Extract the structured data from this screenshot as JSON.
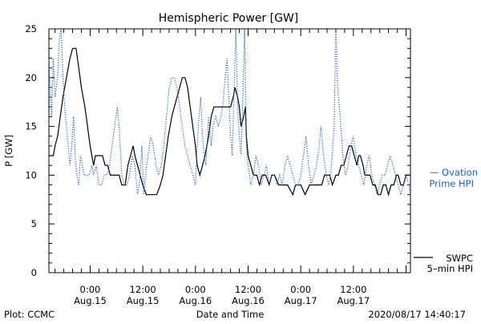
{
  "chart_data": {
    "type": "line",
    "title": "Hemispheric Power [GW]",
    "xlabel": "Date and Time",
    "ylabel": "P [GW]",
    "ylim": [
      0,
      25
    ],
    "xlim": [
      -4.7,
      36.5
    ],
    "y_ticks": [
      0,
      5,
      10,
      15,
      20,
      25
    ],
    "x_ticks": [
      {
        "x": 0,
        "line1": "0:00",
        "line2": "Aug.15"
      },
      {
        "x": 6,
        "line1": "12:00",
        "line2": "Aug.15"
      },
      {
        "x": 12,
        "line1": "0:00",
        "line2": "Aug.16"
      },
      {
        "x": 18,
        "line1": "12:00",
        "line2": "Aug.16"
      },
      {
        "x": 24,
        "line1": "0:00",
        "line2": "Aug.17"
      },
      {
        "x": 30,
        "line1": "12:00",
        "line2": "Aug.17"
      }
    ],
    "x_unit": "hours from Aug.15 0:00 (tick labels every 6 h)",
    "grid": false,
    "series": [
      {
        "name": "SWPC 5-min HPI",
        "style": "solid",
        "color": "#000000",
        "points": [
          [
            -4.7,
            12
          ],
          [
            -4.2,
            12
          ],
          [
            -4.0,
            13
          ],
          [
            -3.7,
            14
          ],
          [
            -3.4,
            16
          ],
          [
            -3.1,
            18
          ],
          [
            -2.7,
            20
          ],
          [
            -2.3,
            22
          ],
          [
            -2.0,
            23
          ],
          [
            -1.6,
            23
          ],
          [
            -1.3,
            21
          ],
          [
            -1.0,
            19
          ],
          [
            -0.6,
            17
          ],
          [
            -0.3,
            15
          ],
          [
            0.0,
            13
          ],
          [
            0.2,
            12
          ],
          [
            0.4,
            11
          ],
          [
            0.6,
            12
          ],
          [
            0.9,
            12
          ],
          [
            1.4,
            12
          ],
          [
            1.7,
            11
          ],
          [
            2.0,
            11
          ],
          [
            2.3,
            10
          ],
          [
            2.7,
            10
          ],
          [
            3.0,
            10
          ],
          [
            3.3,
            10
          ],
          [
            3.6,
            9
          ],
          [
            4.0,
            9
          ],
          [
            4.3,
            11
          ],
          [
            4.6,
            12
          ],
          [
            4.9,
            13
          ],
          [
            5.1,
            12
          ],
          [
            5.4,
            11
          ],
          [
            5.7,
            10
          ],
          [
            6.0,
            9
          ],
          [
            6.4,
            8
          ],
          [
            7.0,
            8
          ],
          [
            7.6,
            8
          ],
          [
            8.0,
            9
          ],
          [
            8.3,
            10
          ],
          [
            8.6,
            12
          ],
          [
            8.9,
            14
          ],
          [
            9.3,
            16
          ],
          [
            9.6,
            17
          ],
          [
            9.9,
            18
          ],
          [
            10.2,
            19
          ],
          [
            10.5,
            20
          ],
          [
            10.8,
            20
          ],
          [
            11.1,
            19
          ],
          [
            11.4,
            17
          ],
          [
            11.7,
            15
          ],
          [
            12.0,
            13
          ],
          [
            12.2,
            11
          ],
          [
            12.5,
            10
          ],
          [
            12.8,
            11
          ],
          [
            13.1,
            12
          ],
          [
            13.5,
            14
          ],
          [
            13.8,
            16
          ],
          [
            14.1,
            17
          ],
          [
            14.6,
            17
          ],
          [
            15.3,
            17
          ],
          [
            16.0,
            17
          ],
          [
            16.3,
            18
          ],
          [
            16.5,
            19
          ],
          [
            16.8,
            18
          ],
          [
            17.0,
            17
          ],
          [
            17.2,
            15
          ],
          [
            17.5,
            16
          ],
          [
            17.7,
            17
          ],
          [
            17.8,
            14
          ],
          [
            18.0,
            12
          ],
          [
            18.3,
            11
          ],
          [
            18.6,
            10
          ],
          [
            19.0,
            10
          ],
          [
            19.3,
            9
          ],
          [
            19.6,
            10
          ],
          [
            20.0,
            10
          ],
          [
            20.4,
            9
          ],
          [
            20.7,
            10
          ],
          [
            21.0,
            10
          ],
          [
            21.5,
            9
          ],
          [
            22.0,
            9
          ],
          [
            22.5,
            9
          ],
          [
            23.1,
            8
          ],
          [
            23.4,
            9
          ],
          [
            24.0,
            9
          ],
          [
            24.5,
            8
          ],
          [
            25.0,
            9
          ],
          [
            25.5,
            9
          ],
          [
            26.0,
            9
          ],
          [
            26.4,
            9
          ],
          [
            26.7,
            10
          ],
          [
            27.0,
            10
          ],
          [
            27.3,
            10
          ],
          [
            27.6,
            9
          ],
          [
            28.0,
            10
          ],
          [
            28.3,
            10
          ],
          [
            28.6,
            11
          ],
          [
            28.9,
            11
          ],
          [
            29.2,
            12
          ],
          [
            29.5,
            13
          ],
          [
            29.8,
            13
          ],
          [
            30.1,
            12
          ],
          [
            30.4,
            11
          ],
          [
            30.6,
            12
          ],
          [
            30.8,
            12
          ],
          [
            31.1,
            11
          ],
          [
            31.3,
            10
          ],
          [
            31.6,
            10
          ],
          [
            31.9,
            10
          ],
          [
            32.2,
            9
          ],
          [
            32.5,
            9
          ],
          [
            32.8,
            8
          ],
          [
            33.1,
            8
          ],
          [
            33.4,
            9
          ],
          [
            33.7,
            9
          ],
          [
            34.0,
            8
          ],
          [
            34.3,
            9
          ],
          [
            34.6,
            9
          ],
          [
            34.9,
            10
          ],
          [
            35.1,
            10
          ],
          [
            35.4,
            9
          ],
          [
            35.7,
            9
          ],
          [
            36.0,
            10
          ],
          [
            36.3,
            10
          ],
          [
            36.5,
            10
          ]
        ]
      },
      {
        "name": "Ovation Prime HPI",
        "style": "dotted",
        "color": "#1e5fc0",
        "points": [
          [
            -4.7,
            22
          ],
          [
            -4.4,
            16
          ],
          [
            -4.2,
            22
          ],
          [
            -4.0,
            18
          ],
          [
            -3.7,
            20
          ],
          [
            -3.5,
            24
          ],
          [
            -3.3,
            25
          ],
          [
            -3.1,
            20
          ],
          [
            -2.9,
            17
          ],
          [
            -2.7,
            15
          ],
          [
            -2.5,
            13
          ],
          [
            -2.3,
            11
          ],
          [
            -2.1,
            13
          ],
          [
            -1.9,
            16
          ],
          [
            -1.7,
            12
          ],
          [
            -1.5,
            10
          ],
          [
            -1.3,
            9
          ],
          [
            -1.1,
            12
          ],
          [
            -0.9,
            11
          ],
          [
            -0.7,
            10
          ],
          [
            -0.5,
            10
          ],
          [
            -0.3,
            10
          ],
          [
            -0.1,
            10
          ],
          [
            0.2,
            11
          ],
          [
            0.4,
            10
          ],
          [
            0.7,
            11
          ],
          [
            1.0,
            9
          ],
          [
            1.3,
            9
          ],
          [
            1.6,
            10
          ],
          [
            1.9,
            10
          ],
          [
            2.2,
            11
          ],
          [
            2.5,
            13
          ],
          [
            2.8,
            15
          ],
          [
            3.1,
            17
          ],
          [
            3.3,
            15
          ],
          [
            3.6,
            10
          ],
          [
            3.9,
            9
          ],
          [
            4.2,
            9
          ],
          [
            4.5,
            10
          ],
          [
            4.8,
            12
          ],
          [
            5.1,
            11
          ],
          [
            5.4,
            8
          ],
          [
            5.7,
            10
          ],
          [
            5.9,
            13
          ],
          [
            6.1,
            8
          ],
          [
            6.3,
            10
          ],
          [
            6.6,
            12
          ],
          [
            6.9,
            14
          ],
          [
            7.2,
            13
          ],
          [
            7.5,
            11
          ],
          [
            7.8,
            10
          ],
          [
            8.1,
            11
          ],
          [
            8.4,
            13
          ],
          [
            8.6,
            15
          ],
          [
            8.8,
            17
          ],
          [
            9.0,
            19
          ],
          [
            9.3,
            20
          ],
          [
            9.6,
            20
          ],
          [
            9.9,
            19
          ],
          [
            10.2,
            17
          ],
          [
            10.5,
            15
          ],
          [
            10.8,
            13
          ],
          [
            11.1,
            12
          ],
          [
            11.4,
            11
          ],
          [
            11.7,
            10
          ],
          [
            12.0,
            9
          ],
          [
            12.2,
            13
          ],
          [
            12.4,
            16
          ],
          [
            12.6,
            18
          ],
          [
            12.8,
            14
          ],
          [
            13.0,
            12
          ],
          [
            13.2,
            11
          ],
          [
            13.5,
            16
          ],
          [
            13.8,
            13
          ],
          [
            14.0,
            15
          ],
          [
            14.3,
            16
          ],
          [
            14.6,
            15
          ],
          [
            14.9,
            16
          ],
          [
            15.1,
            17
          ],
          [
            15.4,
            20
          ],
          [
            15.6,
            22
          ],
          [
            15.8,
            18
          ],
          [
            16.0,
            14
          ],
          [
            16.2,
            12
          ],
          [
            16.4,
            19
          ],
          [
            16.6,
            25
          ],
          [
            16.8,
            17
          ],
          [
            17.0,
            14
          ],
          [
            17.2,
            12
          ],
          [
            17.4,
            18
          ],
          [
            17.6,
            25
          ],
          [
            17.8,
            13
          ],
          [
            18.0,
            11
          ],
          [
            18.3,
            9
          ],
          [
            18.6,
            10
          ],
          [
            18.9,
            12
          ],
          [
            19.2,
            11
          ],
          [
            19.5,
            9
          ],
          [
            19.8,
            10
          ],
          [
            20.1,
            11
          ],
          [
            20.4,
            9
          ],
          [
            20.7,
            10
          ],
          [
            21.0,
            10
          ],
          [
            21.3,
            9
          ],
          [
            21.6,
            10
          ],
          [
            21.9,
            9
          ],
          [
            22.2,
            11
          ],
          [
            22.5,
            12
          ],
          [
            22.8,
            11
          ],
          [
            23.1,
            10
          ],
          [
            23.4,
            9
          ],
          [
            23.7,
            9
          ],
          [
            24.0,
            10
          ],
          [
            24.3,
            12
          ],
          [
            24.6,
            14
          ],
          [
            24.9,
            11
          ],
          [
            25.2,
            9
          ],
          [
            25.5,
            10
          ],
          [
            25.8,
            11
          ],
          [
            26.1,
            13
          ],
          [
            26.3,
            15
          ],
          [
            26.6,
            12
          ],
          [
            26.9,
            10
          ],
          [
            27.2,
            9
          ],
          [
            27.5,
            11
          ],
          [
            27.8,
            15
          ],
          [
            28.0,
            25
          ],
          [
            28.2,
            19
          ],
          [
            28.5,
            16
          ],
          [
            28.8,
            12
          ],
          [
            29.1,
            10
          ],
          [
            29.4,
            11
          ],
          [
            29.7,
            13
          ],
          [
            30.0,
            14
          ],
          [
            30.3,
            12
          ],
          [
            30.6,
            11
          ],
          [
            30.9,
            10
          ],
          [
            31.2,
            9
          ],
          [
            31.5,
            11
          ],
          [
            31.8,
            12
          ],
          [
            32.1,
            10
          ],
          [
            32.4,
            9
          ],
          [
            32.7,
            8
          ],
          [
            33.0,
            9
          ],
          [
            33.3,
            10
          ],
          [
            33.6,
            10
          ],
          [
            33.9,
            11
          ],
          [
            34.2,
            12
          ],
          [
            34.5,
            11
          ],
          [
            34.8,
            10
          ],
          [
            35.1,
            9
          ],
          [
            35.4,
            8
          ],
          [
            35.7,
            9
          ],
          [
            36.0,
            10
          ],
          [
            36.3,
            9
          ],
          [
            36.5,
            8
          ]
        ]
      }
    ],
    "legend": {
      "placement": "right",
      "ovation_line1": "— Ovation",
      "ovation_line2": "Prime HPI",
      "swpc_line1": "SWPC",
      "swpc_line2": "5–min HPI"
    }
  },
  "footer": {
    "left": "Plot: CCMC",
    "center": "Date and Time",
    "right": "2020/08/17 14:40:17"
  },
  "colors": {
    "swpc": "#000000",
    "ovation": "#1e5fc0"
  }
}
